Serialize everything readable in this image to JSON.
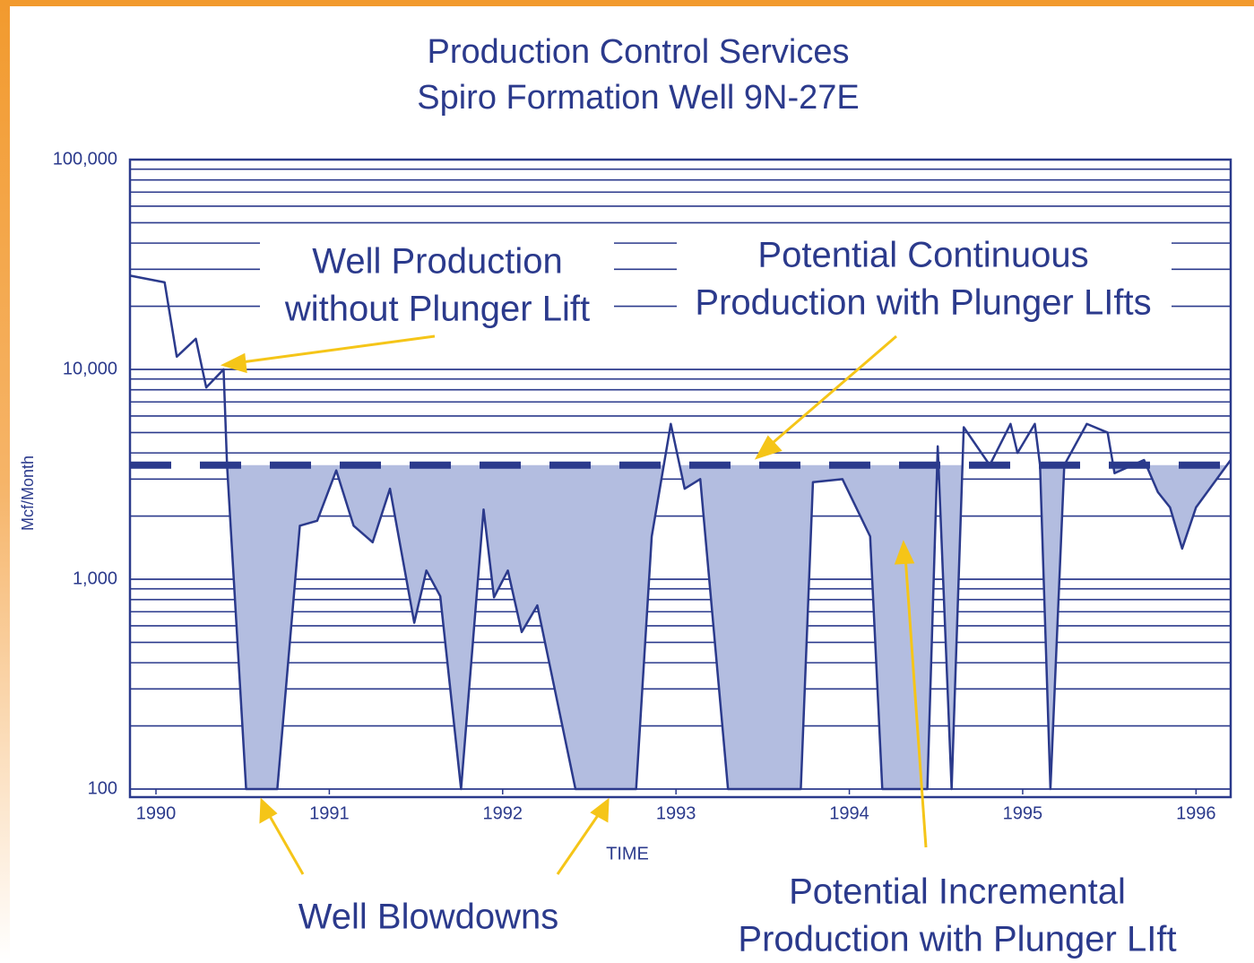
{
  "chart_data": {
    "type": "line",
    "title": [
      "Production Control Services",
      "Spiro Formation Well 9N-27E"
    ],
    "x_label": "TIME",
    "y_label": "Mcf/Month",
    "log_y": true,
    "grid": true,
    "xlim": [
      1989.85,
      1996.2
    ],
    "xticks": [
      1990,
      1991,
      1992,
      1993,
      1994,
      1995,
      1996
    ],
    "ylim": [
      100,
      100000
    ],
    "yticks": [
      {
        "value": 100,
        "label": "100"
      },
      {
        "value": 1000,
        "label": "1,000"
      },
      {
        "value": 10000,
        "label": "10,000"
      },
      {
        "value": 100000,
        "label": "100,000"
      }
    ],
    "minor_yticks": [
      200,
      300,
      400,
      500,
      600,
      700,
      800,
      900,
      2000,
      3000,
      4000,
      5000,
      6000,
      7000,
      8000,
      9000,
      20000,
      30000,
      40000,
      50000,
      60000,
      70000,
      80000,
      90000
    ],
    "series": [
      {
        "name": "Well Production without Plunger Lift",
        "color": "#2b3a8c",
        "x": [
          1989.85,
          1990.05,
          1990.12,
          1990.23,
          1990.29,
          1990.39,
          1990.41,
          1990.52,
          1990.7,
          1990.83,
          1990.93,
          1991.04,
          1991.14,
          1991.25,
          1991.35,
          1991.49,
          1991.56,
          1991.64,
          1991.76,
          1991.89,
          1991.95,
          1992.03,
          1992.11,
          1992.2,
          1992.42,
          1992.77,
          1992.86,
          1992.97,
          1993.05,
          1993.14,
          1993.3,
          1993.72,
          1993.79,
          1993.96,
          1994.12,
          1994.19,
          1994.45,
          1994.51,
          1994.59,
          1994.66,
          1994.81,
          1994.93,
          1994.97,
          1995.07,
          1995.1,
          1995.16,
          1995.24,
          1995.37,
          1995.49,
          1995.53,
          1995.7,
          1995.78,
          1995.85,
          1995.92,
          1996.0,
          1996.2
        ],
        "values": [
          28000,
          26000,
          11500,
          14000,
          8200,
          10000,
          3500,
          100,
          100,
          1800,
          1900,
          3300,
          1800,
          1500,
          2700,
          620,
          1100,
          830,
          100,
          2150,
          820,
          1100,
          560,
          750,
          100,
          100,
          1600,
          5500,
          2700,
          3000,
          100,
          100,
          2900,
          3000,
          1600,
          100,
          100,
          4300,
          100,
          5300,
          3500,
          5500,
          4000,
          5500,
          3500,
          100,
          3500,
          5500,
          5000,
          3200,
          3700,
          2600,
          2200,
          1400,
          2200,
          3700
        ]
      }
    ],
    "potential": {
      "name": "Potential Continuous Production with Plunger LIfts",
      "value": 3500,
      "color": "#2b3a8c"
    },
    "fill_color": "#b3bde0",
    "annotations": [
      {
        "lines": [
          "Well Production",
          "without Plunger Lift"
        ]
      },
      {
        "lines": [
          "Potential Continuous",
          "Production with Plunger LIfts"
        ]
      },
      {
        "lines": [
          "Well Blowdowns"
        ]
      },
      {
        "lines": [
          "Potential Incremental",
          "Production with Plunger LIft"
        ]
      }
    ]
  }
}
